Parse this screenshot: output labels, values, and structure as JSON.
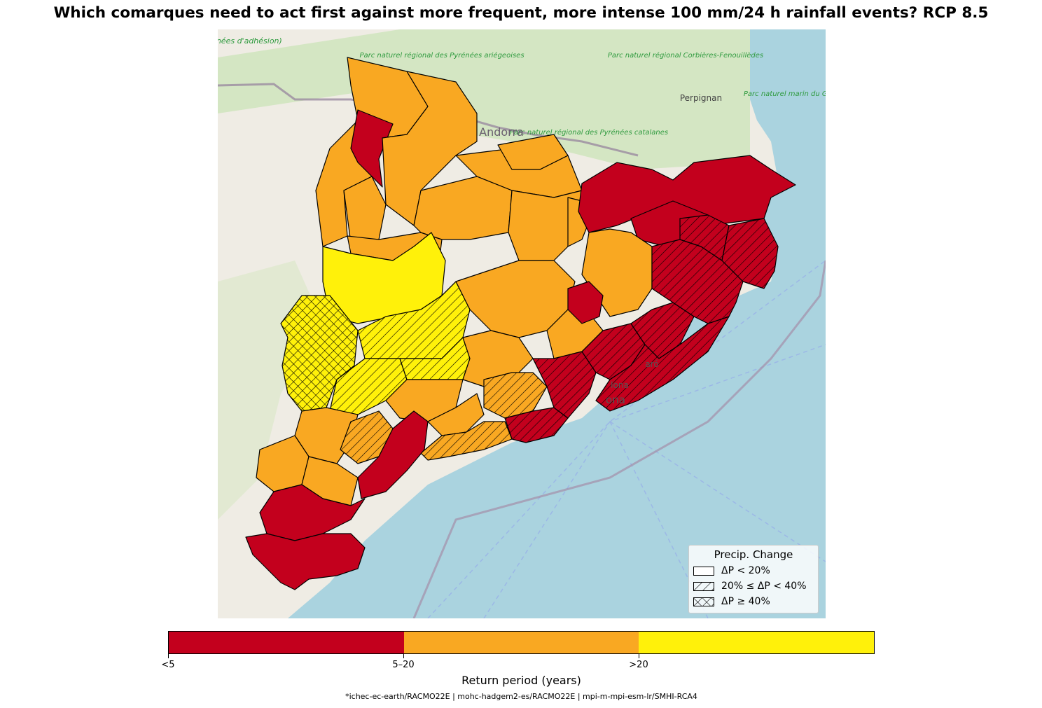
{
  "title": "Which comarques need to act first against more frequent, more intense 100 mm/24 h rainfall events? RCP 8.5",
  "basemap_labels": {
    "pyrenees_park_ariegeoises": "Parc naturel régional des Pyrénées ariégeoises",
    "pyrenees_adhesion": "s Pyrénées d'adhésion)",
    "corbieres": "Parc naturel régional Corbières-Fenouillèdes",
    "perpignan": "Perpignan",
    "andorra": "Andorra",
    "catalanes": "Parc naturel régional des Pyrénées catalanes",
    "marin": "Parc naturel marin du Golfe du Lion",
    "mataro_partial": "aró",
    "badalona_partial": "lona",
    "barcelona_partial": "ona"
  },
  "colors": {
    "low": "#c3001d",
    "mid": "#f9a822",
    "high": "#fff10a",
    "sea": "#aad3df",
    "land": "#f2efe9",
    "forest": "#c9e3b5"
  },
  "legend": {
    "title": "Precip. Change",
    "items": [
      {
        "label": "ΔP < 20%",
        "pattern": "none"
      },
      {
        "label": "20% ≤ ΔP < 40%",
        "pattern": "diagonal-hatch"
      },
      {
        "label": "ΔP ≥ 40%",
        "pattern": "cross-hatch"
      }
    ]
  },
  "colorbar": {
    "title": "Return period (years)",
    "categories": [
      "<5",
      "5–20",
      ">20"
    ],
    "tick_labels": [
      "<5",
      "5–20",
      ">20"
    ]
  },
  "footnote": "*ichec-ec-earth/RACMO22E | mohc-hadgem2-es/RACMO22E | mpi-m-mpi-esm-lr/SMHI-RCA4"
}
